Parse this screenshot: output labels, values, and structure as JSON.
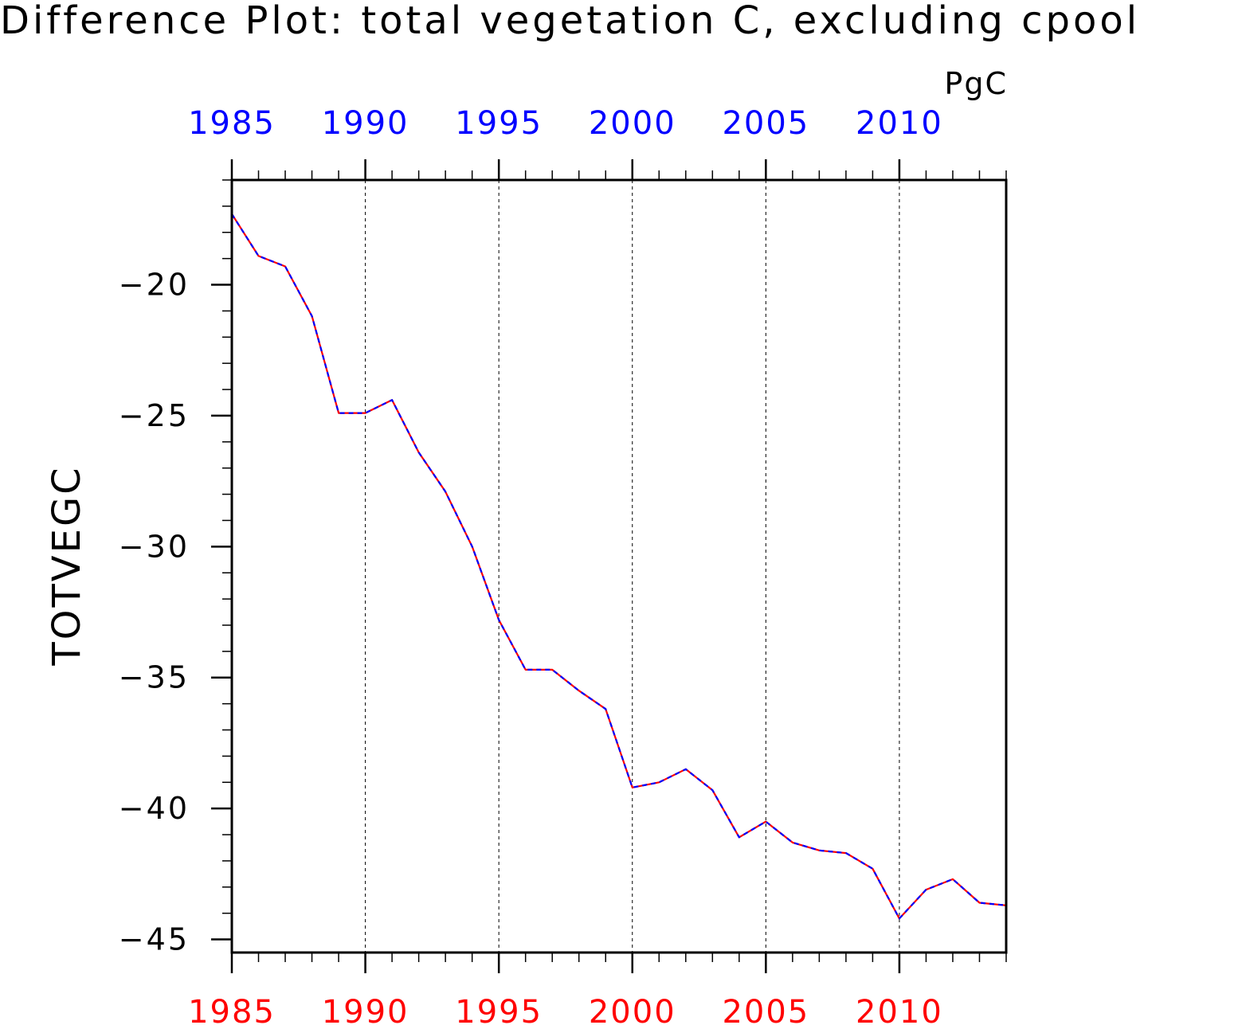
{
  "chart_data": {
    "type": "line",
    "title": "Difference Plot: total vegetation C, excluding cpool",
    "units": "PgC",
    "ylabel": "TOTVEGC",
    "xlabel": "",
    "xlim": [
      1985,
      2014
    ],
    "ylim": [
      -45.5,
      -16
    ],
    "xticks": [
      1985,
      1990,
      1995,
      2000,
      2005,
      2010
    ],
    "xtick_labels": [
      "1985",
      "1990",
      "1995",
      "2000",
      "2005",
      "2010"
    ],
    "yticks": [
      -20,
      -25,
      -30,
      -35,
      -40,
      -45
    ],
    "ytick_labels": [
      "−20",
      "−25",
      "−30",
      "−35",
      "−40",
      "−45"
    ],
    "grid": "vertical dashed at major x ticks",
    "x": [
      1985,
      1986,
      1987,
      1988,
      1989,
      1990,
      1991,
      1992,
      1993,
      1994,
      1995,
      1996,
      1997,
      1998,
      1999,
      2000,
      2001,
      2002,
      2003,
      2004,
      2005,
      2006,
      2007,
      2008,
      2009,
      2010,
      2011,
      2012,
      2013,
      2014
    ],
    "series": [
      {
        "color": "#ff0000",
        "dash": "solid",
        "axis": "bottom",
        "values": [
          -17.3,
          -18.9,
          -19.3,
          -21.2,
          -24.9,
          -24.9,
          -24.4,
          -26.4,
          -27.9,
          -30.0,
          -32.8,
          -34.7,
          -34.7,
          -35.5,
          -36.2,
          -39.2,
          -39.0,
          -38.5,
          -39.3,
          -41.1,
          -40.5,
          -41.3,
          -41.6,
          -41.7,
          -42.3,
          -44.2,
          -43.1,
          -42.7,
          -43.6,
          -43.7
        ]
      },
      {
        "color": "#0000ff",
        "dash": "dashed",
        "axis": "top",
        "values": [
          -17.3,
          -18.9,
          -19.3,
          -21.2,
          -24.9,
          -24.9,
          -24.4,
          -26.4,
          -27.9,
          -30.0,
          -32.8,
          -34.7,
          -34.7,
          -35.5,
          -36.2,
          -39.2,
          -39.0,
          -38.5,
          -39.3,
          -41.1,
          -40.5,
          -41.3,
          -41.6,
          -41.7,
          -42.3,
          -44.2,
          -43.1,
          -42.7,
          -43.6,
          -43.7
        ]
      }
    ],
    "top_axis_color": "#0000ff",
    "bottom_axis_color": "#ff0000"
  }
}
